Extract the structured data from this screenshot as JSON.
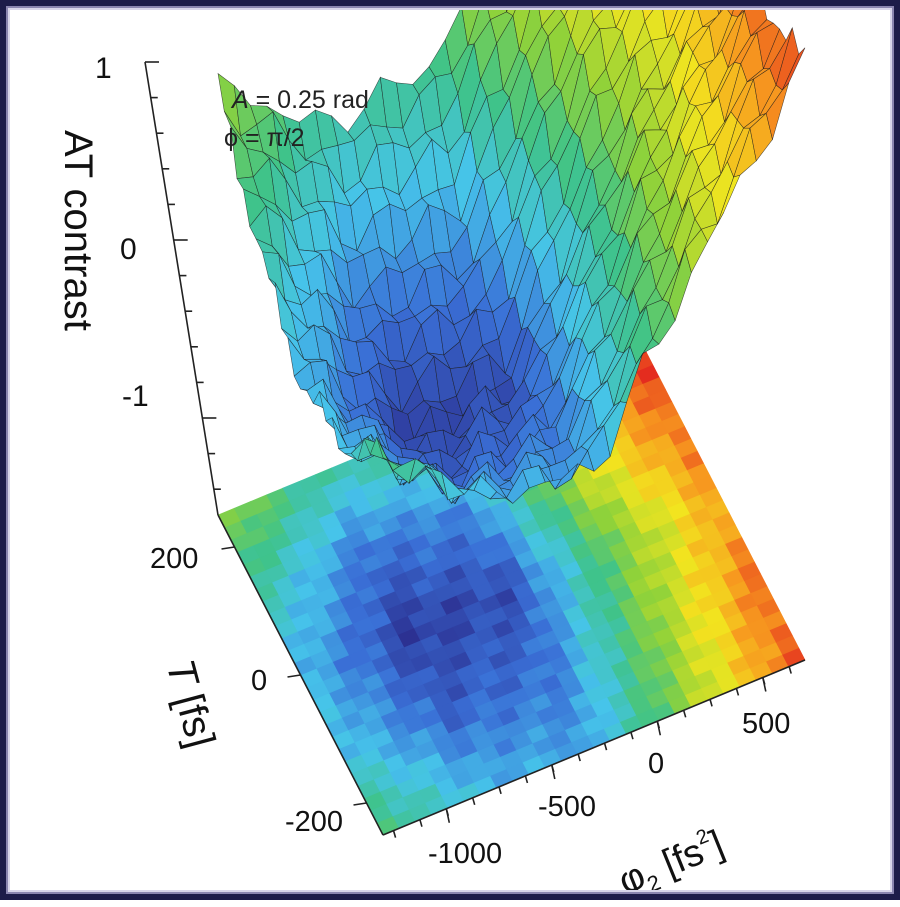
{
  "chart_data": {
    "type": "surface",
    "annotations": {
      "amplitude_symbol": "A",
      "amplitude_text": " = 0.25 rad",
      "phase_text": "ϕ = π/2"
    },
    "zlabel": "AT contrast",
    "ylabel_symbol": "T",
    "ylabel_unit": " [fs]",
    "xlabel_symbol": "φ",
    "xlabel_subscript": "2",
    "xlabel_unit_pre": " [fs",
    "xlabel_unit_sup": "2",
    "xlabel_unit_post": "]",
    "z_ticks": [
      "1",
      "0",
      "-1"
    ],
    "z_tick_values": [
      1,
      0,
      -1
    ],
    "z_range": [
      -1.6,
      1
    ],
    "T_ticks": [
      "200",
      "0",
      "-200"
    ],
    "T_tick_values": [
      200,
      0,
      -200
    ],
    "T_range": [
      -250,
      250
    ],
    "phi2_ticks": [
      "-1000",
      "-500",
      "0",
      "500"
    ],
    "phi2_tick_values": [
      -1000,
      -500,
      0,
      500
    ],
    "phi2_range": [
      -1300,
      700
    ],
    "surface_approx": {
      "description_rows_T": [
        -250,
        -125,
        0,
        125,
        250
      ],
      "phi2_cols": [
        -1300,
        -800,
        -300,
        200,
        700
      ],
      "z_values": [
        [
          -0.4,
          -0.9,
          -1.0,
          0.0,
          0.9
        ],
        [
          -0.8,
          -1.3,
          -1.2,
          -0.1,
          0.8
        ],
        [
          -0.9,
          -1.5,
          -1.4,
          -0.2,
          0.6
        ],
        [
          -0.6,
          -1.2,
          -1.1,
          0.1,
          0.8
        ],
        [
          -0.1,
          -0.6,
          -0.5,
          0.4,
          1.0
        ]
      ]
    },
    "colormap": [
      "#2b2b8c",
      "#3a6fd6",
      "#46c4ea",
      "#3fc38a",
      "#8fd23a",
      "#f2e51f",
      "#f7981f",
      "#e3261f"
    ],
    "grid": false,
    "legend": "none"
  }
}
